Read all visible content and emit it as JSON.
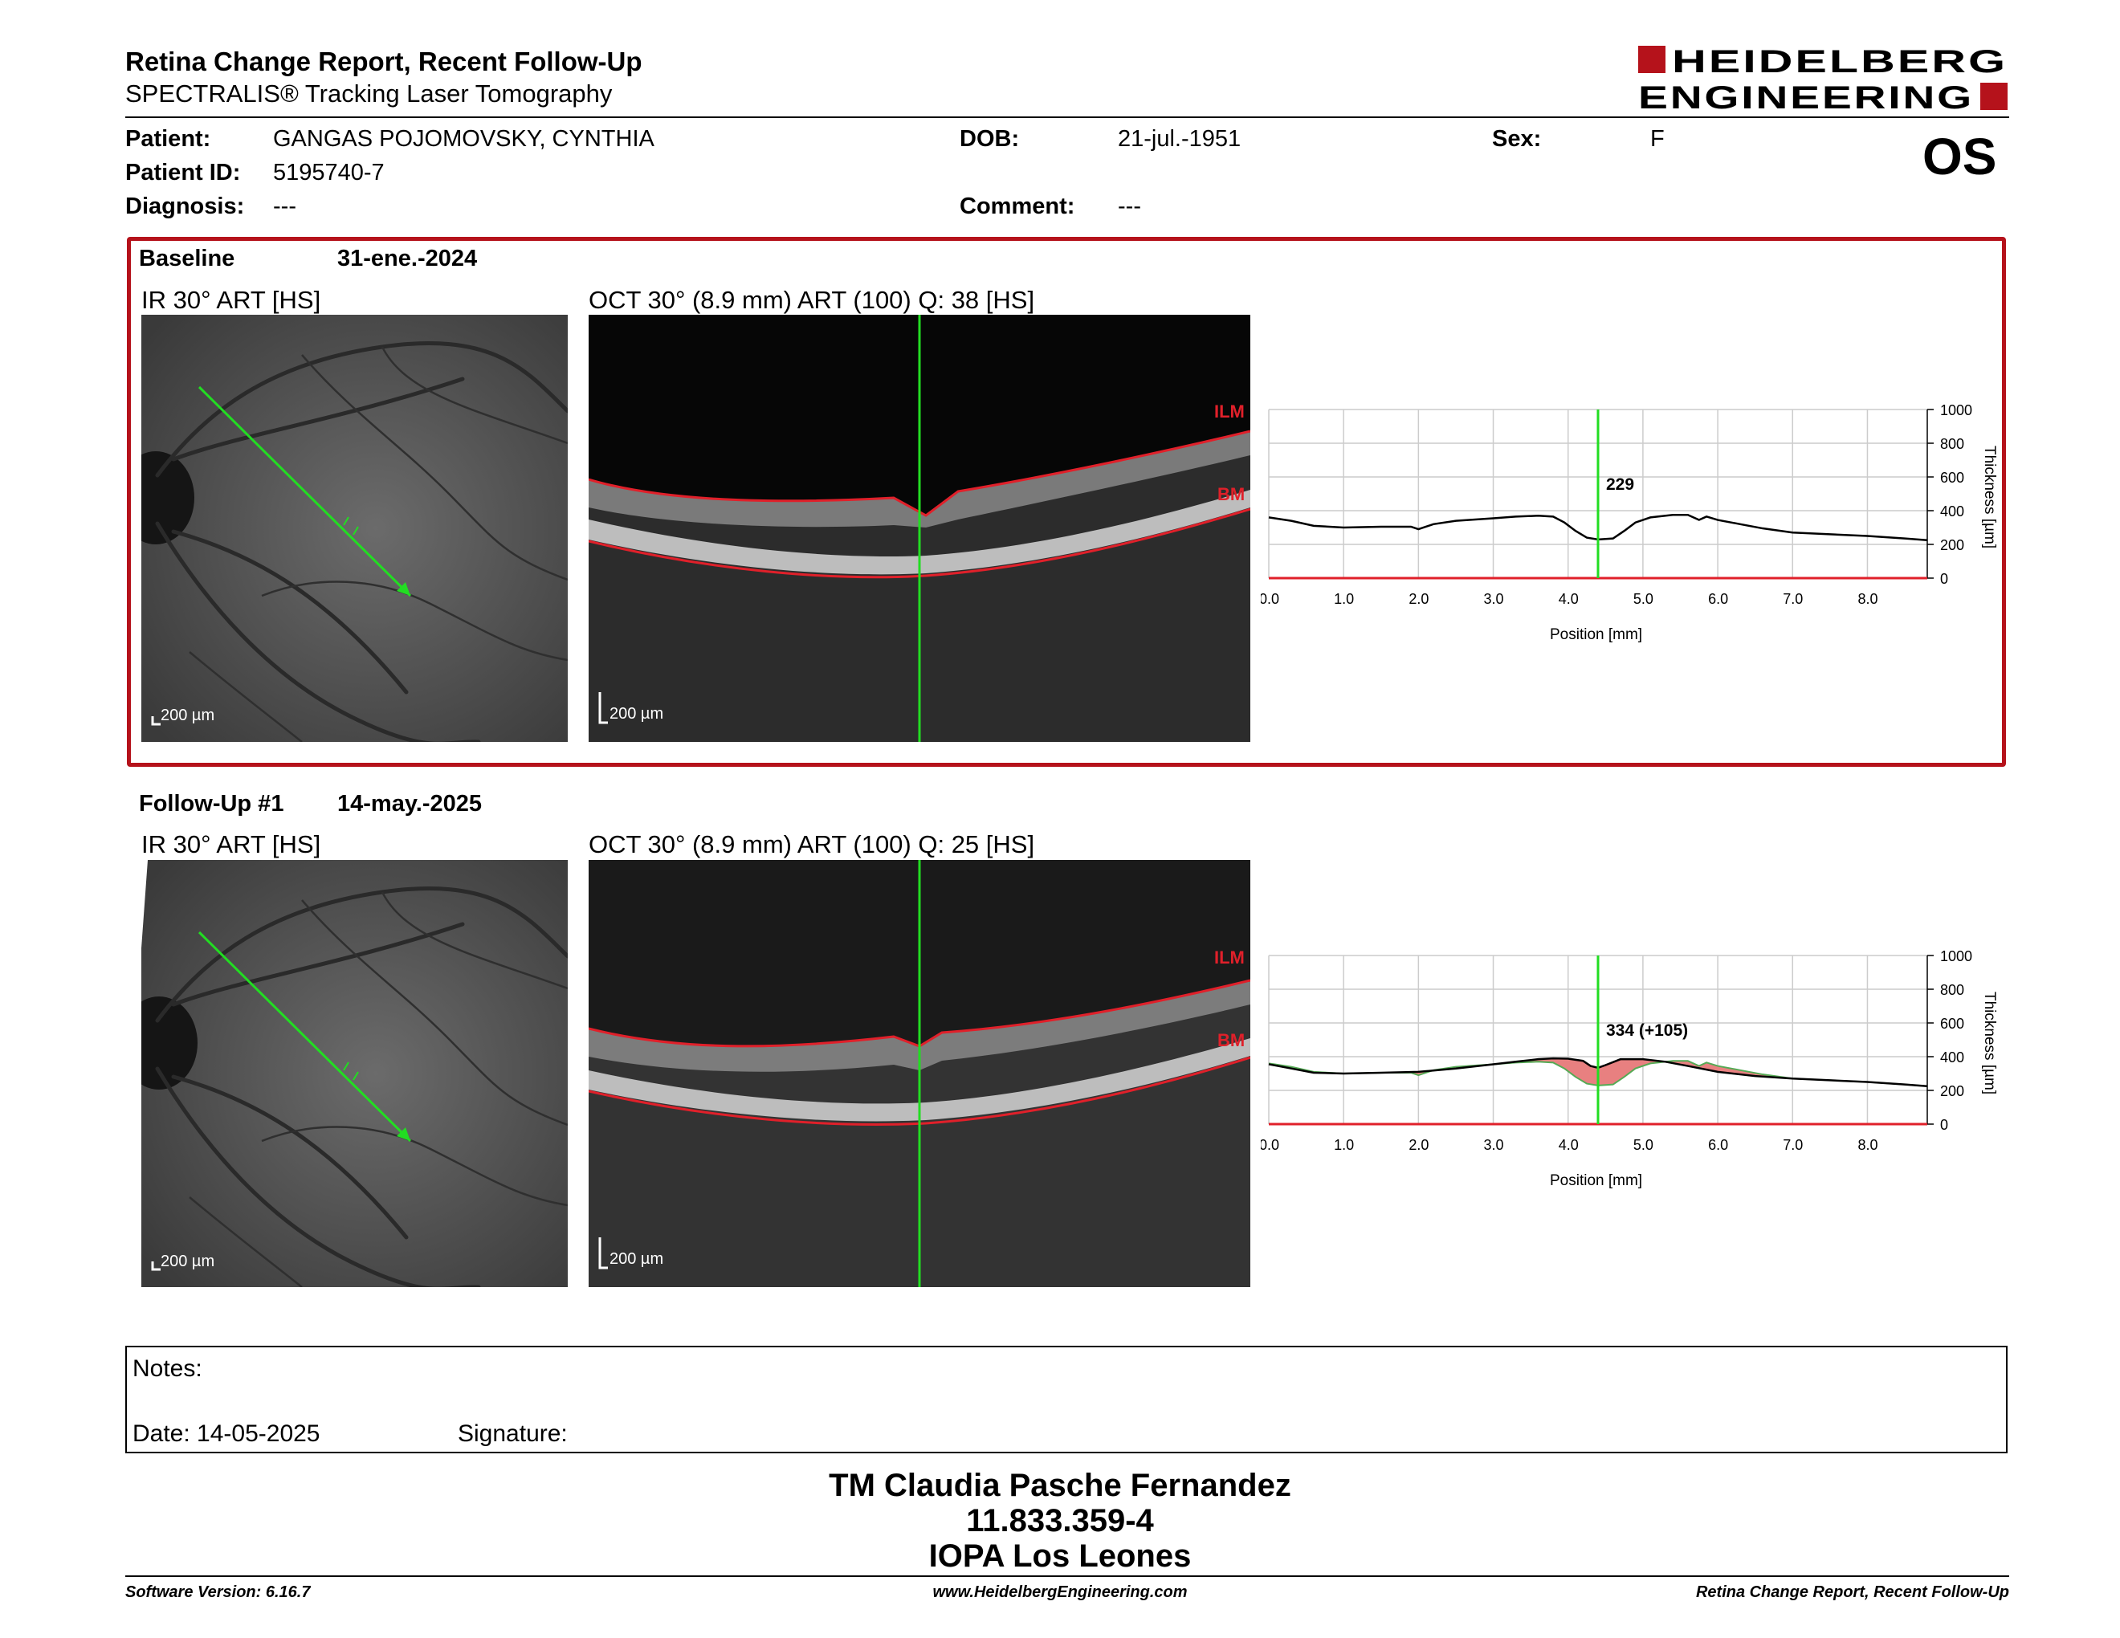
{
  "header": {
    "title": "Retina Change Report, Recent Follow-Up",
    "subtitle": "SPECTRALIS® Tracking Laser Tomography",
    "logo_line1": "HEIDELBERG",
    "logo_line2": "ENGINEERING",
    "eye": "OS"
  },
  "patient": {
    "patient_label": "Patient:",
    "patient_value": "GANGAS POJOMOVSKY, CYNTHIA",
    "id_label": "Patient ID:",
    "id_value": "5195740-7",
    "diagnosis_label": "Diagnosis:",
    "diagnosis_value": "---",
    "dob_label": "DOB:",
    "dob_value": "21-jul.-1951",
    "comment_label": "Comment:",
    "comment_value": "---",
    "sex_label": "Sex:",
    "sex_value": "F"
  },
  "baseline": {
    "label": "Baseline",
    "date": "31-ene.-2024",
    "ir_label": "IR 30° ART [HS]",
    "oct_label": "OCT 30° (8.9 mm) ART (100) Q: 38 [HS]",
    "scale": "200 µm",
    "ilm": "ILM",
    "bm": "BM"
  },
  "followup": {
    "label": "Follow-Up #1",
    "date": "14-may.-2025",
    "ir_label": "IR 30° ART [HS]",
    "oct_label": "OCT 30° (8.9 mm) ART (100) Q: 25 [HS]",
    "scale": "200 µm",
    "ilm": "ILM",
    "bm": "BM"
  },
  "chart_data": [
    {
      "type": "line",
      "xlabel": "Position [mm]",
      "ylabel": "Thickness [µm]",
      "xlim": [
        0,
        8.8
      ],
      "ylim": [
        0,
        1000
      ],
      "xticks": [
        "0.0",
        "1.0",
        "2.0",
        "3.0",
        "4.0",
        "5.0",
        "6.0",
        "7.0",
        "8.0"
      ],
      "yticks": [
        "0",
        "200",
        "400",
        "600",
        "800",
        "1000"
      ],
      "grid": true,
      "cursor_x": 4.4,
      "cursor_label": "229",
      "series": [
        {
          "x": [
            0,
            0.3,
            0.6,
            1.0,
            1.5,
            1.9,
            2.0,
            2.2,
            2.5,
            3.0,
            3.3,
            3.6,
            3.8,
            3.95,
            4.1,
            4.25,
            4.4,
            4.6,
            4.75,
            4.9,
            5.1,
            5.4,
            5.6,
            5.75,
            5.85,
            6.0,
            6.3,
            6.6,
            7.0,
            7.5,
            8.0,
            8.5,
            8.8
          ],
          "y": [
            360,
            340,
            310,
            300,
            305,
            305,
            290,
            320,
            340,
            355,
            365,
            370,
            365,
            330,
            280,
            240,
            229,
            235,
            280,
            330,
            360,
            375,
            375,
            345,
            365,
            345,
            320,
            295,
            270,
            260,
            250,
            235,
            225
          ]
        }
      ]
    },
    {
      "type": "line",
      "xlabel": "Position [mm]",
      "ylabel": "Thickness [µm]",
      "xlim": [
        0,
        8.8
      ],
      "ylim": [
        0,
        1000
      ],
      "xticks": [
        "0.0",
        "1.0",
        "2.0",
        "3.0",
        "4.0",
        "5.0",
        "6.0",
        "7.0",
        "8.0"
      ],
      "yticks": [
        "0",
        "200",
        "400",
        "600",
        "800",
        "1000"
      ],
      "grid": true,
      "cursor_x": 4.4,
      "cursor_label": "334 (+105)",
      "series": [
        {
          "x": [
            0,
            0.3,
            0.6,
            1.0,
            1.5,
            2.0,
            2.5,
            3.0,
            3.3,
            3.6,
            3.8,
            4.0,
            4.2,
            4.3,
            4.4,
            4.5,
            4.7,
            5.0,
            5.3,
            5.6,
            6.0,
            6.5,
            7.0,
            7.5,
            8.0,
            8.5,
            8.8
          ],
          "y": [
            355,
            330,
            305,
            300,
            305,
            310,
            330,
            355,
            370,
            385,
            390,
            388,
            375,
            345,
            334,
            350,
            385,
            385,
            370,
            345,
            310,
            285,
            270,
            260,
            250,
            235,
            225
          ]
        },
        {
          "x": [
            0,
            0.3,
            0.6,
            1.0,
            1.5,
            1.9,
            2.0,
            2.2,
            2.5,
            3.0,
            3.3,
            3.6,
            3.8,
            3.95,
            4.1,
            4.25,
            4.4,
            4.6,
            4.75,
            4.9,
            5.1,
            5.4,
            5.6,
            5.75,
            5.85,
            6.0,
            6.3,
            6.6,
            7.0,
            7.5,
            8.0,
            8.5,
            8.8
          ],
          "y": [
            360,
            340,
            310,
            300,
            305,
            305,
            290,
            320,
            340,
            355,
            365,
            370,
            365,
            330,
            280,
            240,
            229,
            235,
            280,
            330,
            360,
            375,
            375,
            345,
            365,
            345,
            320,
            295,
            270,
            260,
            250,
            235,
            225
          ]
        }
      ]
    }
  ],
  "notes": {
    "label": "Notes:",
    "date_label": "Date: 14-05-2025",
    "signature_label": "Signature:"
  },
  "signatory": {
    "name": "TM Claudia Pasche Fernandez",
    "id": "11.833.359-4",
    "place": "IOPA Los Leones"
  },
  "footer": {
    "software": "Software Version: 6.16.7",
    "website": "www.HeidelbergEngineering.com",
    "report": "Retina Change Report, Recent Follow-Up"
  },
  "colors": {
    "brand_red": "#b5121b",
    "cursor_green": "#22dd22",
    "layer_red": "#e0202a",
    "diff_fill": "#e88080"
  }
}
